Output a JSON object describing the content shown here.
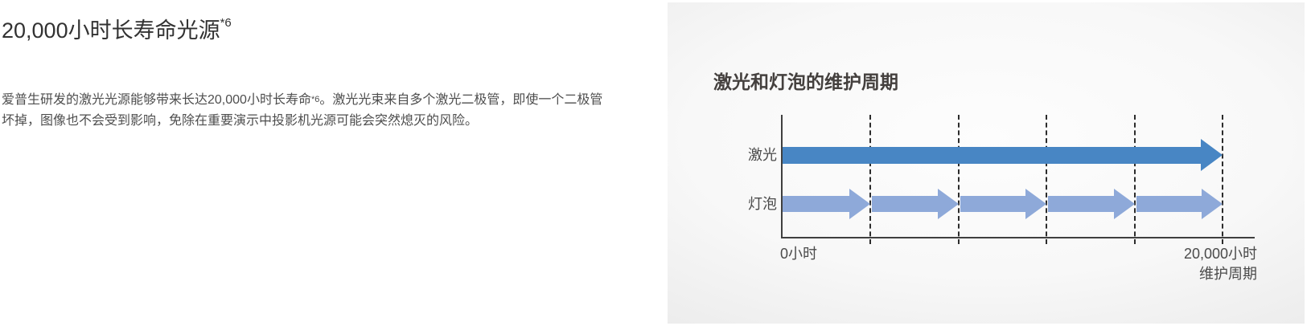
{
  "feature": {
    "heading": {
      "text": "20,000小时长寿命光源",
      "superscript": "*6"
    },
    "description": {
      "part1": "爱普生研发的激光光源能够带来长达20,000小时长寿命",
      "superscript": "*6",
      "part2": "。激光光束来自多个激光二极管，即使一个二极管坏掉，图像也不会受到影响，免除在重要演示中投影机光源可能会突然熄灭的风险。"
    }
  },
  "chart_data": {
    "type": "bar",
    "orientation": "horizontal",
    "title": "激光和灯泡的维护周期",
    "xlabel": "维护周期",
    "xlim": [
      0,
      20000
    ],
    "x_ticks": [
      {
        "value": 0,
        "label": "0小时"
      },
      {
        "value": 20000,
        "label": "20,000小时"
      }
    ],
    "gridlines": {
      "show": true,
      "style": "vertical-dashed",
      "positions": [
        4000,
        8000,
        12000,
        16000,
        20000
      ]
    },
    "legend": null,
    "rows": [
      {
        "label": "激光",
        "color": "#4886C4",
        "segments": [
          {
            "start": 0,
            "end": 20000
          }
        ]
      },
      {
        "label": "灯泡",
        "color": "#8EA9D9",
        "segments": [
          {
            "start": 0,
            "end": 4000
          },
          {
            "start": 4000,
            "end": 8000
          },
          {
            "start": 8000,
            "end": 12000
          },
          {
            "start": 12000,
            "end": 16000
          },
          {
            "start": 16000,
            "end": 20000
          }
        ]
      }
    ]
  },
  "colors": {
    "laser_blue": "#4886C4",
    "lamp_blue": "#8EA9D9",
    "axis": "#3F3F3F",
    "gridline_dash": "#2C2C2C",
    "panel_bg_center": "#FDFDFD",
    "panel_bg_edge": "#EBEBEB",
    "chart_title_text": "#44403E",
    "chart_label_text": "#4A4A4A",
    "heading_text": "#323232",
    "body_text": "#4E4E4E"
  }
}
